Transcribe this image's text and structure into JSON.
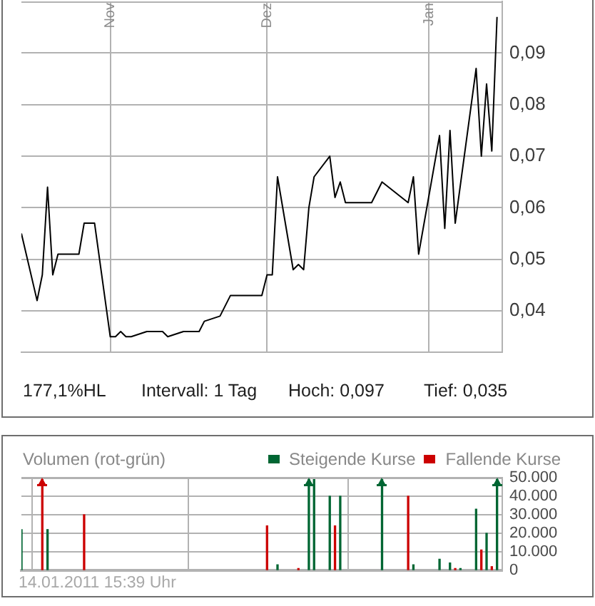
{
  "chart_data": [
    {
      "type": "line",
      "series": [
        {
          "color": "#000000",
          "x": [
            "2010-10-15",
            "2010-10-18",
            "2010-10-19",
            "2010-10-20",
            "2010-10-21",
            "2010-10-22",
            "2010-10-25",
            "2010-10-26",
            "2010-10-27",
            "2010-10-28",
            "2010-10-29",
            "2010-11-01",
            "2010-11-02",
            "2010-11-03",
            "2010-11-04",
            "2010-11-05",
            "2010-11-08",
            "2010-11-09",
            "2010-11-10",
            "2010-11-11",
            "2010-11-12",
            "2010-11-15",
            "2010-11-16",
            "2010-11-17",
            "2010-11-18",
            "2010-11-19",
            "2010-11-22",
            "2010-11-23",
            "2010-11-24",
            "2010-11-25",
            "2010-11-26",
            "2010-11-29",
            "2010-11-30",
            "2010-12-01",
            "2010-12-02",
            "2010-12-03",
            "2010-12-06",
            "2010-12-07",
            "2010-12-08",
            "2010-12-09",
            "2010-12-10",
            "2010-12-13",
            "2010-12-14",
            "2010-12-15",
            "2010-12-16",
            "2010-12-17",
            "2010-12-20",
            "2010-12-21",
            "2010-12-22",
            "2010-12-23",
            "2010-12-28",
            "2010-12-29",
            "2010-12-30",
            "2011-01-03",
            "2011-01-04",
            "2011-01-05",
            "2011-01-06",
            "2011-01-10",
            "2011-01-11",
            "2011-01-12",
            "2011-01-13",
            "2011-01-14"
          ],
          "values": [
            0.055,
            0.042,
            0.047,
            0.064,
            0.047,
            0.051,
            0.051,
            0.051,
            0.057,
            0.057,
            0.057,
            0.035,
            0.035,
            0.036,
            0.035,
            0.035,
            0.036,
            0.036,
            0.036,
            0.036,
            0.035,
            0.036,
            0.036,
            0.036,
            0.036,
            0.038,
            0.039,
            0.041,
            0.043,
            0.043,
            0.043,
            0.043,
            0.043,
            0.047,
            0.047,
            0.066,
            0.048,
            0.049,
            0.048,
            0.06,
            0.066,
            0.07,
            0.062,
            0.065,
            0.061,
            0.061,
            0.061,
            0.061,
            0.063,
            0.065,
            0.061,
            0.066,
            0.051,
            0.074,
            0.056,
            0.075,
            0.057,
            0.087,
            0.07,
            0.084,
            0.071,
            0.097
          ]
        }
      ],
      "xlim": [
        "2010-10-15",
        "2011-01-15"
      ],
      "xticks": [
        {
          "value": "2010-11-01",
          "label": "Nov"
        },
        {
          "value": "2010-12-01",
          "label": "Dez"
        },
        {
          "value": "2011-01-01",
          "label": "Jan"
        }
      ],
      "ylim": [
        0.032,
        0.1
      ],
      "yticks": [
        {
          "value": 0.04,
          "label": "0,04"
        },
        {
          "value": 0.05,
          "label": "0,05"
        },
        {
          "value": 0.06,
          "label": "0,06"
        },
        {
          "value": 0.07,
          "label": "0,07"
        },
        {
          "value": 0.08,
          "label": "0,08"
        },
        {
          "value": 0.09,
          "label": "0,09"
        }
      ],
      "grid": true,
      "annotations": [
        "177,1%HL",
        "Intervall: 1 Tag",
        "Hoch: 0,097",
        "Tief: 0,035"
      ]
    },
    {
      "type": "bar",
      "title": "Volumen (rot-grün)",
      "x": [
        "2010-10-15",
        "2010-10-19",
        "2010-10-20",
        "2010-10-27",
        "2010-12-01",
        "2010-12-03",
        "2010-12-07",
        "2010-12-09",
        "2010-12-10",
        "2010-12-13",
        "2010-12-14",
        "2010-12-15",
        "2010-12-23",
        "2010-12-28",
        "2010-12-29",
        "2011-01-03",
        "2011-01-05",
        "2011-01-06",
        "2011-01-07",
        "2011-01-10",
        "2011-01-11",
        "2011-01-12",
        "2011-01-13",
        "2011-01-14"
      ],
      "series": [
        {
          "name": "Steigende Kurse",
          "color": "#006633",
          "values": [
            22000,
            null,
            22000,
            null,
            null,
            3000,
            null,
            50000,
            49000,
            40000,
            null,
            40000,
            50000,
            null,
            3000,
            6000,
            4000,
            null,
            1000,
            33000,
            null,
            20000,
            null,
            50000
          ]
        },
        {
          "name": "Fallende Kurse",
          "color": "#cc0000",
          "values": [
            null,
            50000,
            null,
            30000,
            24000,
            null,
            1000,
            null,
            null,
            null,
            24000,
            null,
            null,
            40000,
            null,
            null,
            null,
            1000,
            null,
            null,
            11000,
            null,
            2000,
            null
          ]
        }
      ],
      "xlim": [
        "2010-10-15",
        "2011-01-15"
      ],
      "xticks": [
        {
          "value": "2010-11-01",
          "label": null
        },
        {
          "value": "2010-12-01",
          "label": null
        },
        {
          "value": "2011-01-01",
          "label": null
        }
      ],
      "ylim": [
        0,
        50000
      ],
      "yticks": [
        0,
        {
          "value": 10000,
          "label": "10.000"
        },
        {
          "value": 20000,
          "label": "20.000"
        },
        {
          "value": 30000,
          "label": "30.000"
        },
        {
          "value": 40000,
          "label": "40.000"
        },
        {
          "value": 50000,
          "label": "50.000"
        }
      ],
      "grid": true,
      "legend": "top right",
      "tick_labels": "y",
      "annotations": [
        "14.01.2011 15:39 Uhr"
      ]
    }
  ]
}
